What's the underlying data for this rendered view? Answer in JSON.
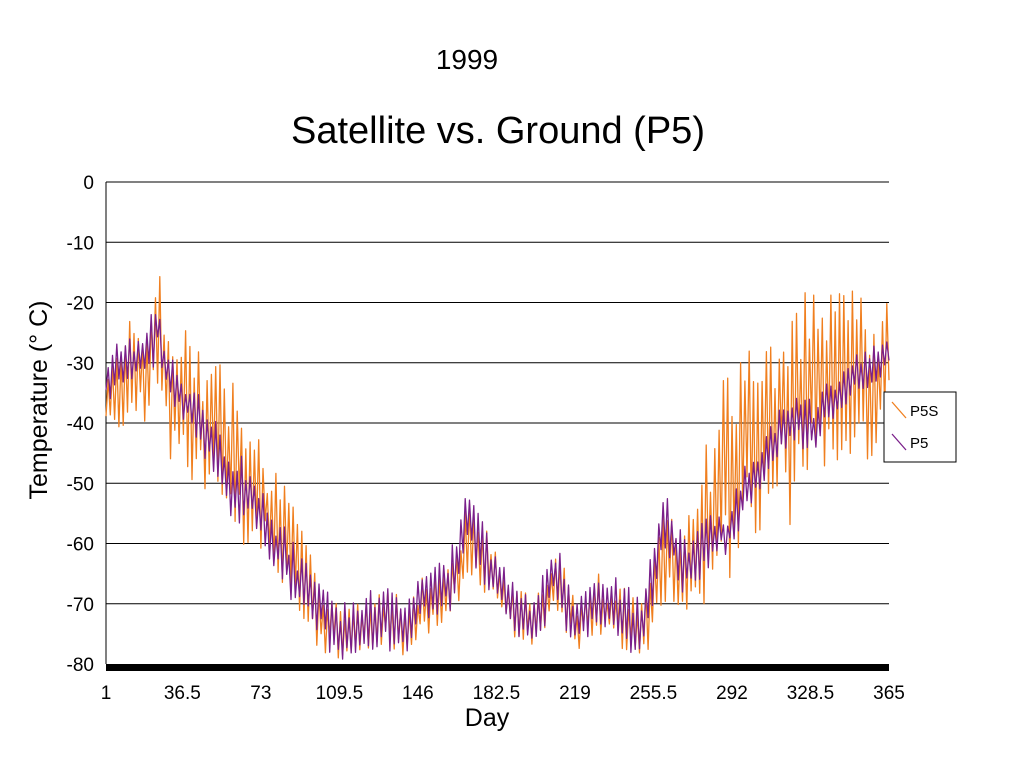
{
  "header_year": "1999",
  "chart_data": {
    "type": "line",
    "title": "Satellite vs. Ground (P5)",
    "xlabel": "Day",
    "ylabel": "Temperature (° C)",
    "xlim": [
      1,
      365
    ],
    "ylim": [
      -80,
      0
    ],
    "x_ticks": [
      "1",
      "36.5",
      "73",
      "109.5",
      "146",
      "182.5",
      "219",
      "255.5",
      "292",
      "328.5",
      "365"
    ],
    "y_ticks": [
      "0",
      "-10",
      "-20",
      "-30",
      "-40",
      "-50",
      "-60",
      "-70",
      "-80"
    ],
    "grid": "horizontal",
    "legend_position": "right",
    "colors": {
      "P5S": "#f07f1f",
      "P5": "#7a1f8a"
    },
    "series": [
      {
        "name": "P5S",
        "x": [
          1,
          10,
          20,
          25,
          30,
          40,
          50,
          60,
          70,
          80,
          90,
          100,
          110,
          120,
          130,
          140,
          150,
          160,
          170,
          180,
          190,
          200,
          210,
          220,
          230,
          240,
          250,
          260,
          270,
          280,
          290,
          300,
          310,
          320,
          330,
          340,
          350,
          360,
          365
        ],
        "values": [
          -35,
          -33,
          -32,
          -24,
          -35,
          -38,
          -42,
          -44,
          -50,
          -57,
          -64,
          -72,
          -74,
          -74,
          -72,
          -74,
          -70,
          -68,
          -60,
          -64,
          -71,
          -73,
          -66,
          -74,
          -70,
          -72,
          -74,
          -63,
          -64,
          -57,
          -47,
          -44,
          -40,
          -36,
          -34,
          -32,
          -30,
          -33,
          -28
        ],
        "spread": [
          6,
          8,
          10,
          12,
          10,
          12,
          14,
          14,
          12,
          10,
          8,
          6,
          5,
          5,
          5,
          5,
          5,
          6,
          6,
          6,
          5,
          5,
          5,
          5,
          5,
          5,
          5,
          8,
          10,
          14,
          16,
          16,
          16,
          18,
          16,
          16,
          14,
          12,
          10
        ]
      },
      {
        "name": "P5",
        "x": [
          1,
          10,
          20,
          25,
          30,
          40,
          50,
          60,
          70,
          80,
          90,
          100,
          110,
          120,
          130,
          140,
          150,
          160,
          170,
          180,
          190,
          200,
          210,
          220,
          230,
          240,
          250,
          260,
          270,
          280,
          290,
          300,
          310,
          320,
          330,
          340,
          350,
          360,
          365
        ],
        "values": [
          -33,
          -30,
          -28,
          -24,
          -33,
          -37,
          -43,
          -51,
          -52,
          -60,
          -66,
          -70,
          -75,
          -74,
          -72,
          -74,
          -68,
          -67,
          -56,
          -64,
          -71,
          -73,
          -65,
          -74,
          -69,
          -71,
          -74,
          -56,
          -64,
          -60,
          -58,
          -50,
          -44,
          -40,
          -40,
          -36,
          -32,
          -30,
          -28
        ],
        "spread": [
          4,
          4,
          4,
          5,
          4,
          4,
          5,
          5,
          5,
          5,
          5,
          5,
          5,
          5,
          5,
          5,
          5,
          5,
          6,
          5,
          5,
          4,
          5,
          5,
          5,
          5,
          5,
          6,
          5,
          5,
          5,
          4,
          4,
          4,
          4,
          4,
          3,
          3,
          3
        ]
      }
    ]
  }
}
